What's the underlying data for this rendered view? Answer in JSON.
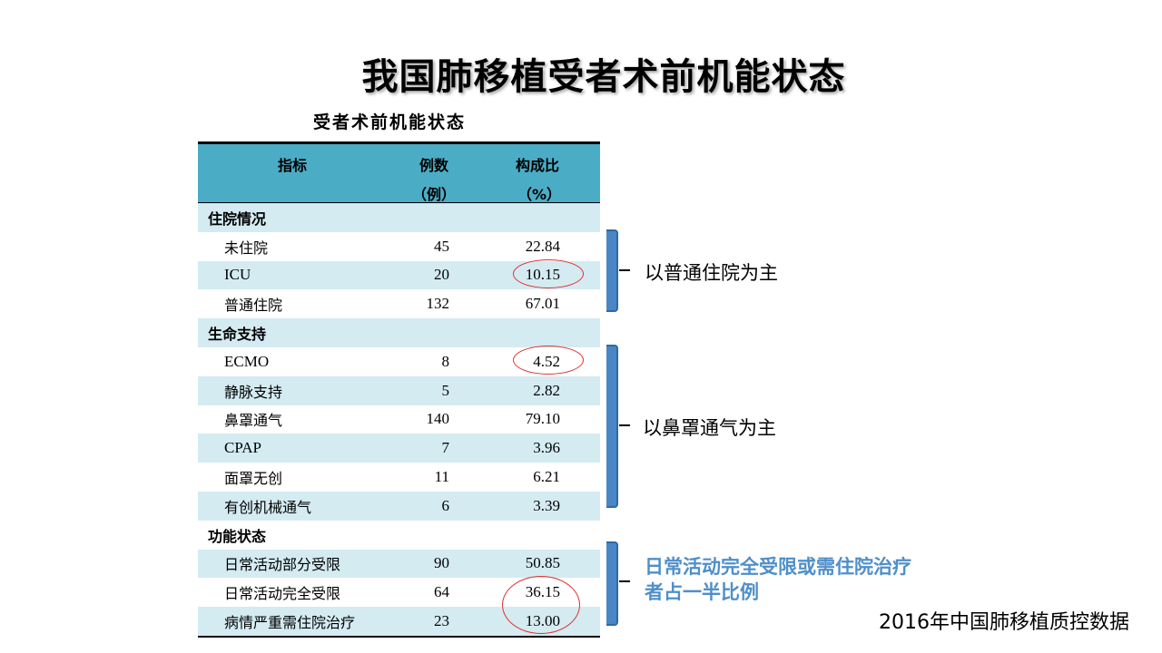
{
  "slide": {
    "title": "我国肺移植受者术前机能状态",
    "caption": "受者术前机能状态",
    "source": "2016年中国肺移植质控数据"
  },
  "table": {
    "headers": {
      "indicator": "指标",
      "count_line1": "例数",
      "count_line2": "（例）",
      "pct_line1": "构成比",
      "pct_line2": "（%）"
    },
    "rows": [
      {
        "type": "section",
        "label": "住院情况"
      },
      {
        "type": "item",
        "label": "未住院",
        "count": "45",
        "pct": "22.84"
      },
      {
        "type": "item",
        "label": "ICU",
        "count": "20",
        "pct": "10.15"
      },
      {
        "type": "item",
        "label": "普通住院",
        "count": "132",
        "pct": "67.01"
      },
      {
        "type": "section",
        "label": "生命支持"
      },
      {
        "type": "item",
        "label": "ECMO",
        "count": "8",
        "pct": "4.52"
      },
      {
        "type": "item",
        "label": "静脉支持",
        "count": "5",
        "pct": "2.82"
      },
      {
        "type": "item",
        "label": "鼻罩通气",
        "count": "140",
        "pct": "79.10"
      },
      {
        "type": "item",
        "label": "CPAP",
        "count": "7",
        "pct": "3.96"
      },
      {
        "type": "item",
        "label": "面罩无创",
        "count": "11",
        "pct": "6.21"
      },
      {
        "type": "item",
        "label": "有创机械通气",
        "count": "6",
        "pct": "3.39"
      },
      {
        "type": "section",
        "label": "功能状态"
      },
      {
        "type": "item",
        "label": "日常活动部分受限",
        "count": "90",
        "pct": "50.85"
      },
      {
        "type": "item",
        "label": "日常活动完全受限",
        "count": "64",
        "pct": "36.15"
      },
      {
        "type": "item",
        "label": "病情严重需住院治疗",
        "count": "23",
        "pct": "13.00"
      }
    ]
  },
  "notes": {
    "hospital": "以普通住院为主",
    "support": "以鼻罩通气为主",
    "function_line1": "日常活动完全受限或需住院治疗",
    "function_line2": "者占一半比例"
  },
  "colors": {
    "header_bg": "#4bacc6",
    "alt_row_bg": "#d4ebf2",
    "highlight_circle": "#e03030",
    "bracket": "#4a86c5",
    "note_emphasis": "#4f8fc9"
  }
}
